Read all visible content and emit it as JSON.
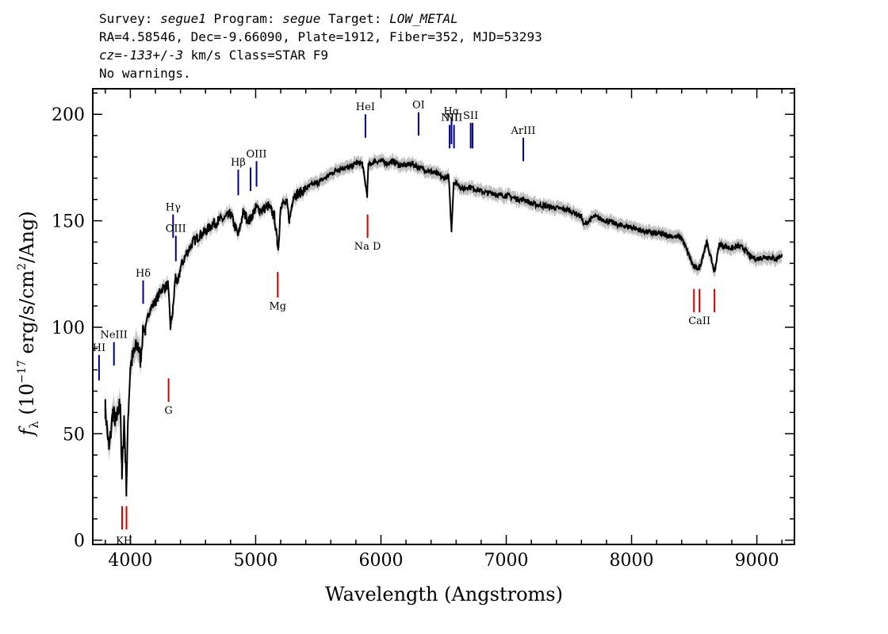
{
  "header": {
    "survey_label": "Survey: ",
    "survey_value": "segue1",
    "program_label": " Program: ",
    "program_value": "segue",
    "target_label": " Target: ",
    "target_value": "LOW_METAL",
    "line2": "RA=4.58546, Dec=-9.66090, Plate=1912, Fiber=352, MJD=53293",
    "cz_label": "cz",
    "cz_eq": "=",
    "cz_value": "-133",
    "cz_pm": "+/-",
    "cz_err": "3",
    "cz_rest": " km/s Class=STAR F9",
    "line4": "No warnings."
  },
  "colors": {
    "emission_line": "#00008b",
    "absorption_line": "#d00000",
    "spectrum": "#000000",
    "error_band": "#c0c0c0"
  },
  "chart_data": {
    "type": "line",
    "xlabel": "Wavelength (Angstroms)",
    "ylabel": "fλ (10^-17 erg/s/cm^2/Ang)",
    "ylabel_parts": {
      "f": "f",
      "lambda": "λ",
      "open": " (10",
      "exp1": "−17",
      "mid": " erg/s/cm",
      "exp2": "2",
      "close": "/Ang)"
    },
    "xlim": [
      3700,
      9300
    ],
    "ylim": [
      -2,
      212
    ],
    "x_ticks": [
      4000,
      5000,
      6000,
      7000,
      8000,
      9000
    ],
    "x_tick_labels": [
      "4000",
      "5000",
      "6000",
      "7000",
      "8000",
      "9000"
    ],
    "y_ticks": [
      0,
      50,
      100,
      150,
      200
    ],
    "y_tick_labels": [
      "0",
      "50",
      "100",
      "150",
      "200"
    ],
    "grid": false,
    "series": [
      {
        "x": [
          3800,
          3830,
          3860,
          3890,
          3920,
          3933,
          3950,
          3968,
          3985,
          4000,
          4030,
          4060,
          4080,
          4102,
          4120,
          4150,
          4200,
          4250,
          4300,
          4320,
          4340,
          4360,
          4380,
          4400,
          4450,
          4500,
          4550,
          4600,
          4650,
          4700,
          4750,
          4800,
          4861,
          4900,
          4950,
          5000,
          5050,
          5100,
          5150,
          5172,
          5183,
          5200,
          5250,
          5270,
          5300,
          5350,
          5400,
          5450,
          5500,
          5550,
          5600,
          5650,
          5700,
          5750,
          5800,
          5850,
          5890,
          5900,
          5950,
          6000,
          6050,
          6100,
          6150,
          6200,
          6250,
          6300,
          6350,
          6400,
          6450,
          6500,
          6540,
          6563,
          6580,
          6600,
          6650,
          6700,
          6750,
          6800,
          6850,
          6900,
          6950,
          7000,
          7050,
          7100,
          7150,
          7200,
          7300,
          7400,
          7500,
          7600,
          7620,
          7700,
          7800,
          7900,
          8000,
          8100,
          8200,
          8300,
          8400,
          8498,
          8542,
          8600,
          8662,
          8700,
          8800,
          8850,
          8900,
          8950,
          9000,
          9050,
          9100,
          9150,
          9200
        ],
        "y": [
          62,
          42,
          60,
          55,
          66,
          28,
          58,
          25,
          62,
          82,
          88,
          92,
          85,
          100,
          98,
          108,
          112,
          118,
          120,
          100,
          108,
          124,
          120,
          128,
          135,
          140,
          143,
          145,
          148,
          150,
          151,
          153,
          143,
          154,
          150,
          156,
          155,
          157,
          152,
          140,
          138,
          158,
          158,
          150,
          162,
          163,
          165,
          167,
          168,
          170,
          172,
          174,
          175,
          175,
          177,
          177,
          162,
          176,
          178,
          178,
          177,
          178,
          176,
          176,
          177,
          175,
          174,
          173,
          172,
          170,
          171,
          145,
          168,
          168,
          165,
          166,
          165,
          164,
          163,
          163,
          162,
          162,
          161,
          160,
          160,
          158,
          157,
          156,
          155,
          152,
          148,
          152,
          150,
          148,
          147,
          145,
          144,
          143,
          142,
          128,
          128,
          140,
          126,
          139,
          137,
          138,
          137,
          133,
          132,
          133,
          133,
          132,
          134
        ]
      }
    ],
    "annotations": [
      {
        "name": "H-I",
        "label": "HI",
        "kind": "emission",
        "wavelength": 3750,
        "y_top": 87,
        "y_bottom": 75
      },
      {
        "name": "Ne-III",
        "label": "NeIII",
        "kind": "emission",
        "wavelength": 3869,
        "y_top": 93,
        "y_bottom": 82
      },
      {
        "name": "H-delta",
        "label": "Hδ",
        "kind": "emission",
        "wavelength": 4102,
        "y_top": 122,
        "y_bottom": 111
      },
      {
        "name": "H-gamma",
        "label": "Hγ",
        "kind": "emission",
        "wavelength": 4341,
        "y_top": 153,
        "y_bottom": 142
      },
      {
        "name": "O-III-4363",
        "label": "OIII",
        "kind": "emission",
        "wavelength": 4363,
        "y_top": 143,
        "y_bottom": 131
      },
      {
        "name": "H-beta",
        "label": "Hβ",
        "kind": "emission",
        "wavelength": 4861,
        "y_top": 174,
        "y_bottom": 162
      },
      {
        "name": "O-III-4959",
        "label": "",
        "kind": "emission",
        "wavelength": 4959,
        "y_top": 175,
        "y_bottom": 164
      },
      {
        "name": "O-III-5007",
        "label": "OIII",
        "kind": "emission",
        "wavelength": 5007,
        "y_top": 178,
        "y_bottom": 166
      },
      {
        "name": "He-I",
        "label": "HeI",
        "kind": "emission",
        "wavelength": 5876,
        "y_top": 200,
        "y_bottom": 189
      },
      {
        "name": "O-I",
        "label": "OI",
        "kind": "emission",
        "wavelength": 6300,
        "y_top": 201,
        "y_bottom": 190
      },
      {
        "name": "N-II-6548",
        "label": "NII",
        "kind": "emission",
        "wavelength": 6548,
        "y_top": 195,
        "y_bottom": 184
      },
      {
        "name": "H-alpha",
        "label": "Hα",
        "kind": "emission",
        "wavelength": 6563,
        "y_top": 198,
        "y_bottom": 186
      },
      {
        "name": "N-II-6583",
        "label": "NII",
        "kind": "emission",
        "wavelength": 6583,
        "y_top": 195,
        "y_bottom": 184
      },
      {
        "name": "S-II-6716",
        "label": "SII",
        "kind": "emission",
        "wavelength": 6716,
        "y_top": 196,
        "y_bottom": 184
      },
      {
        "name": "S-II-6731",
        "label": "",
        "kind": "emission",
        "wavelength": 6731,
        "y_top": 196,
        "y_bottom": 184
      },
      {
        "name": "Ar-III",
        "label": "ArIII",
        "kind": "emission",
        "wavelength": 7136,
        "y_top": 189,
        "y_bottom": 178
      },
      {
        "name": "K",
        "label": "",
        "kind": "absorption",
        "wavelength": 3934,
        "y_top": 16,
        "y_bottom": 5
      },
      {
        "name": "H-CaII",
        "label": "",
        "kind": "absorption",
        "wavelength": 3969,
        "y_top": 16,
        "y_bottom": 5
      },
      {
        "name": "G-band",
        "label": "G",
        "kind": "absorption",
        "wavelength": 4305,
        "y_top": 76,
        "y_bottom": 65
      },
      {
        "name": "Mg",
        "label": "Mg",
        "kind": "absorption",
        "wavelength": 5176,
        "y_top": 126,
        "y_bottom": 114
      },
      {
        "name": "Na-D",
        "label": "Na D",
        "kind": "absorption",
        "wavelength": 5893,
        "y_top": 153,
        "y_bottom": 142
      },
      {
        "name": "Ca-II-8498",
        "label": "",
        "kind": "absorption",
        "wavelength": 8498,
        "y_top": 118,
        "y_bottom": 107
      },
      {
        "name": "Ca-II-8542",
        "label": "CaII",
        "kind": "absorption",
        "wavelength": 8542,
        "y_top": 118,
        "y_bottom": 107
      },
      {
        "name": "Ca-II-8662",
        "label": "",
        "kind": "absorption",
        "wavelength": 8662,
        "y_top": 118,
        "y_bottom": 107
      }
    ],
    "kh_label": {
      "label": "KH",
      "wavelength": 3951,
      "y": -1
    }
  }
}
